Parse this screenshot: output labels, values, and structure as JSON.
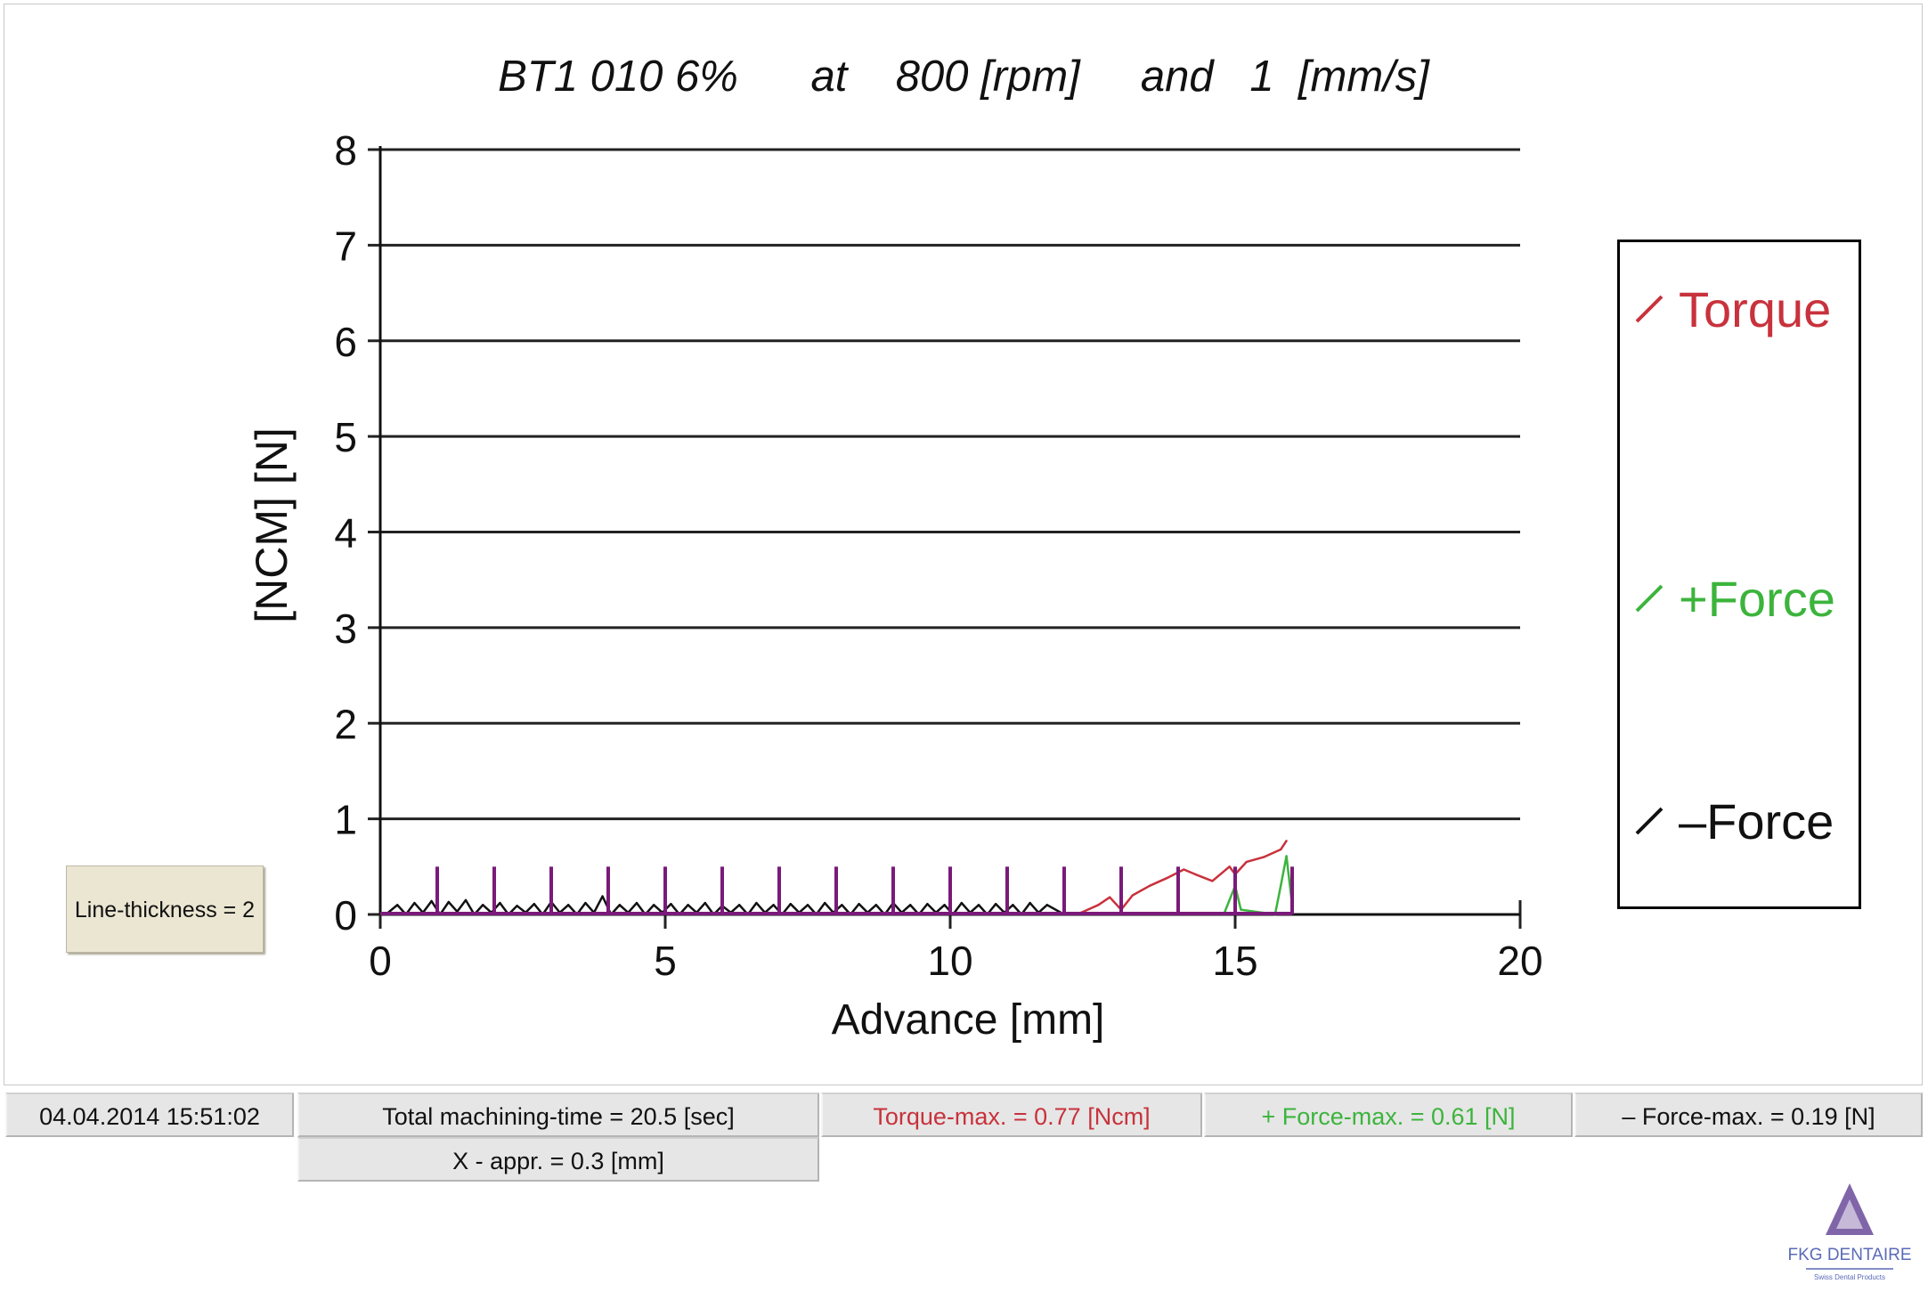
{
  "chart_data": {
    "type": "line",
    "title": "BT1 010 6%      at    800 [rpm]     and   1  [mm/s]",
    "xlabel": "Advance [mm]",
    "ylabel": "[NCM] [N]",
    "xlim": [
      0,
      20
    ],
    "ylim": [
      0,
      8
    ],
    "xticks": [
      "0",
      "5",
      "10",
      "15",
      "20"
    ],
    "yticks": [
      "0",
      "1",
      "2",
      "3",
      "4",
      "5",
      "6",
      "7",
      "8"
    ],
    "grid": "horizontal",
    "legend": "right",
    "series": [
      {
        "name": "Torque",
        "color": "#c8323c",
        "x": [
          12.3,
          12.6,
          12.8,
          13.0,
          13.2,
          13.5,
          13.8,
          14.1,
          14.3,
          14.6,
          14.9,
          15.0,
          15.2,
          15.5,
          15.8,
          15.9
        ],
        "y": [
          0.02,
          0.1,
          0.18,
          0.05,
          0.2,
          0.3,
          0.38,
          0.47,
          0.42,
          0.35,
          0.5,
          0.42,
          0.55,
          0.6,
          0.68,
          0.77
        ]
      },
      {
        "name": "+Force",
        "color": "#3cb43c",
        "x": [
          14.8,
          14.9,
          15.0,
          15.1,
          15.7,
          15.8,
          15.9,
          16.0
        ],
        "y": [
          0.0,
          0.15,
          0.3,
          0.05,
          0.0,
          0.3,
          0.61,
          0.1
        ]
      },
      {
        "name": "–Force",
        "color": "#111111",
        "x": [
          0.1,
          0.3,
          0.45,
          0.6,
          0.75,
          0.9,
          1.05,
          1.2,
          1.35,
          1.5,
          1.65,
          1.8,
          1.95,
          2.1,
          2.25,
          2.4,
          2.55,
          2.7,
          2.85,
          3.0,
          3.15,
          3.3,
          3.45,
          3.6,
          3.75,
          3.9,
          4.05,
          4.2,
          4.35,
          4.5,
          4.65,
          4.8,
          4.95,
          5.1,
          5.25,
          5.4,
          5.55,
          5.7,
          5.85,
          6.0,
          6.15,
          6.3,
          6.45,
          6.6,
          6.75,
          6.9,
          7.05,
          7.2,
          7.35,
          7.5,
          7.65,
          7.8,
          7.95,
          8.1,
          8.25,
          8.4,
          8.55,
          8.7,
          8.85,
          9.0,
          9.15,
          9.3,
          9.45,
          9.6,
          9.75,
          9.9,
          10.05,
          10.2,
          10.35,
          10.5,
          10.65,
          10.8,
          10.95,
          11.1,
          11.25,
          11.4,
          11.55,
          11.7,
          12.0
        ],
        "y": [
          0.0,
          0.1,
          0.0,
          0.12,
          0.02,
          0.14,
          0.0,
          0.13,
          0.03,
          0.15,
          0.0,
          0.1,
          0.02,
          0.12,
          0.0,
          0.09,
          0.02,
          0.11,
          0.0,
          0.13,
          0.02,
          0.1,
          0.0,
          0.12,
          0.02,
          0.19,
          0.0,
          0.1,
          0.02,
          0.12,
          0.0,
          0.1,
          0.02,
          0.11,
          0.0,
          0.1,
          0.02,
          0.12,
          0.0,
          0.09,
          0.02,
          0.1,
          0.0,
          0.12,
          0.02,
          0.1,
          0.0,
          0.11,
          0.02,
          0.1,
          0.0,
          0.12,
          0.02,
          0.1,
          0.0,
          0.11,
          0.02,
          0.1,
          0.0,
          0.12,
          0.02,
          0.1,
          0.0,
          0.11,
          0.02,
          0.1,
          0.0,
          0.12,
          0.02,
          0.1,
          0.0,
          0.11,
          0.02,
          0.1,
          0.0,
          0.12,
          0.02,
          0.1,
          0.0
        ]
      },
      {
        "name": "",
        "color": "#7a1a7a",
        "type": "spikes",
        "x": [
          1,
          2,
          3,
          4,
          5,
          6,
          7,
          8,
          9,
          10,
          11,
          12,
          13,
          14,
          15,
          16
        ],
        "y": [
          0.5,
          0.5,
          0.5,
          0.5,
          0.5,
          0.5,
          0.5,
          0.5,
          0.5,
          0.5,
          0.5,
          0.5,
          0.5,
          0.5,
          0.5,
          0.5
        ]
      }
    ]
  },
  "legend": {
    "items": [
      {
        "label": "Torque",
        "color": "#c8323c"
      },
      {
        "label": "+Force",
        "color": "#3cb43c"
      },
      {
        "label": "–Force",
        "color": "#111111"
      }
    ]
  },
  "line_thickness_label": "Line-thickness = 2",
  "status": {
    "datetime": "04.04.2014 15:51:02",
    "machining_time": "Total machining-time = 20.5 [sec]",
    "x_appr": "X - appr. = 0.3 [mm]",
    "torque_max": "Torque-max. = 0.77 [Ncm]",
    "plus_force_max": "+ Force-max. = 0.61 [N]",
    "minus_force_max": "– Force-max. = 0.19 [N]",
    "torque_color": "#c8323c",
    "plus_force_color": "#3cb43c",
    "minus_force_color": "#111111"
  },
  "logo": {
    "text": "FKG DENTAIRE",
    "subtext": "Swiss Dental Products",
    "icon": "fkg-triangle-logo",
    "color": "#5a3a8a"
  }
}
